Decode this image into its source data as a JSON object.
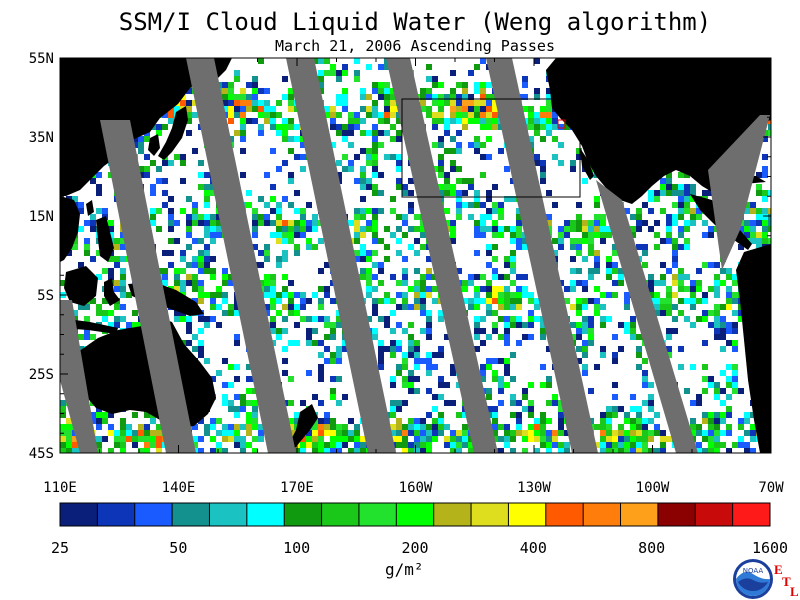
{
  "title": "SSM/I Cloud Liquid Water (Weng algorithm)",
  "subtitle": "March 21, 2006  Ascending Passes",
  "map": {
    "lat_labels": [
      "55N",
      "35N",
      "15N",
      "5S",
      "25S",
      "45S"
    ],
    "lon_labels": [
      "110E",
      "140E",
      "170E",
      "160W",
      "130W",
      "100W",
      "70W"
    ]
  },
  "colorbar": {
    "colors": [
      "#0a1f7a",
      "#0d35b8",
      "#1a5bff",
      "#12918f",
      "#1ac2c2",
      "#00ffff",
      "#0f9a0f",
      "#19c819",
      "#22e22e",
      "#00ff00",
      "#b4b41a",
      "#dede1e",
      "#ffff00",
      "#ff5a00",
      "#ff7d0a",
      "#ffa01a",
      "#8b0000",
      "#c80a0a",
      "#ff1a1a"
    ],
    "tick_labels": [
      "25",
      "50",
      "100",
      "200",
      "400",
      "800",
      "1600"
    ],
    "units": "g/m²"
  },
  "logo": {
    "name": "NOAA",
    "letters": [
      "E",
      "T",
      "L"
    ]
  },
  "colors": {
    "land": "#000000",
    "no_data_swath": "#6e6e6e",
    "ocean_clear": "#ffffff",
    "box_outline": "#000000",
    "marker": "#e00000"
  }
}
